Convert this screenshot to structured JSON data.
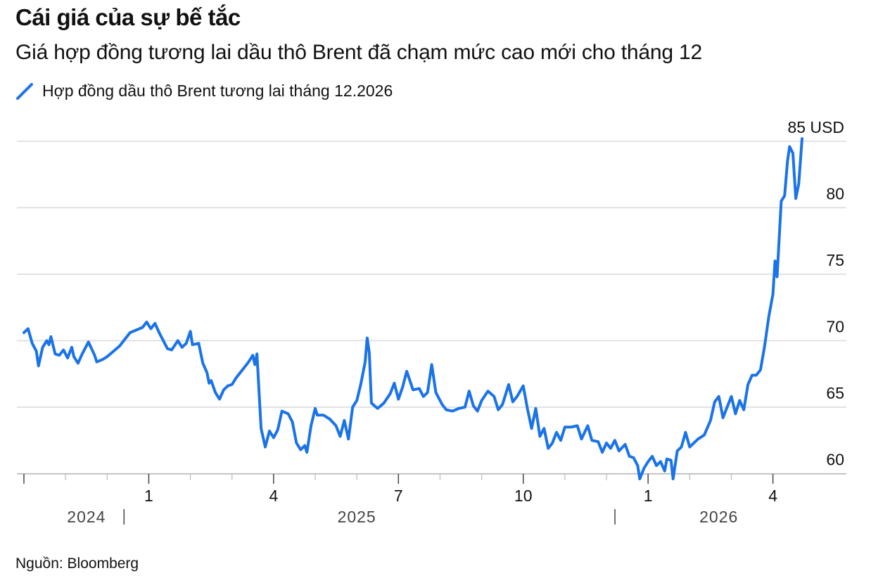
{
  "title": "Cái giá của sự bế tắc",
  "subtitle": "Giá hợp đồng tương lai dầu thô Brent đã chạm mức cao mới cho tháng 12",
  "source": "Nguồn: Bloomberg",
  "colors": {
    "line": "#1a73e8",
    "grid": "#d9d9d9",
    "axis": "#444444"
  },
  "chart_data": {
    "type": "line",
    "title": "Cái giá của sự bế tắc",
    "subtitle": "Giá hợp đồng tương lai dầu thô Brent đã chạm mức cao mới cho tháng 12",
    "legend": [
      "Hợp đồng dầu thô Brent tương lai tháng 12.2026"
    ],
    "legend_position": "top-left",
    "xlabel": "",
    "ylabel": "",
    "x_range": [
      0,
      18.7
    ],
    "ylim": [
      59.5,
      86.0
    ],
    "y_ticks": [
      {
        "value": 60,
        "label": "60"
      },
      {
        "value": 65,
        "label": "65"
      },
      {
        "value": 70,
        "label": "70"
      },
      {
        "value": 75,
        "label": "75"
      },
      {
        "value": 80,
        "label": "80"
      },
      {
        "value": 85,
        "label": "85 USD"
      }
    ],
    "x_ticks": [
      {
        "pos": 0,
        "label": ""
      },
      {
        "pos": 3,
        "label": "1"
      },
      {
        "pos": 6,
        "label": "4"
      },
      {
        "pos": 9,
        "label": "7"
      },
      {
        "pos": 12,
        "label": "10"
      },
      {
        "pos": 15,
        "label": "1"
      },
      {
        "pos": 18,
        "label": "4"
      }
    ],
    "minor_ticks": [
      1,
      2,
      4,
      5,
      7,
      8,
      10,
      11,
      13,
      14,
      16,
      17
    ],
    "years": [
      {
        "label": "2024",
        "center": 1.3
      },
      {
        "label": "2025",
        "center": 8.0
      },
      {
        "label": "2026",
        "center": 16.7
      }
    ],
    "year_separators": [
      2.0,
      14.0
    ],
    "grid": true,
    "series": [
      {
        "name": "Hợp đồng dầu thô Brent tương lai tháng 12.2026",
        "points": [
          [
            0.0,
            70.6
          ],
          [
            0.1,
            70.9
          ],
          [
            0.2,
            69.8
          ],
          [
            0.3,
            69.2
          ],
          [
            0.35,
            68.1
          ],
          [
            0.45,
            69.5
          ],
          [
            0.55,
            70.0
          ],
          [
            0.6,
            69.7
          ],
          [
            0.65,
            70.3
          ],
          [
            0.75,
            69.0
          ],
          [
            0.85,
            68.9
          ],
          [
            0.95,
            69.3
          ],
          [
            1.05,
            68.7
          ],
          [
            1.15,
            69.5
          ],
          [
            1.2,
            68.8
          ],
          [
            1.3,
            68.3
          ],
          [
            1.4,
            69.0
          ],
          [
            1.55,
            69.9
          ],
          [
            1.7,
            68.9
          ],
          [
            1.75,
            68.4
          ],
          [
            1.9,
            68.6
          ],
          [
            2.0,
            68.8
          ],
          [
            2.15,
            69.2
          ],
          [
            2.3,
            69.6
          ],
          [
            2.4,
            70.0
          ],
          [
            2.55,
            70.6
          ],
          [
            2.7,
            70.8
          ],
          [
            2.85,
            71.0
          ],
          [
            2.95,
            71.4
          ],
          [
            3.05,
            70.9
          ],
          [
            3.15,
            71.3
          ],
          [
            3.25,
            70.6
          ],
          [
            3.45,
            69.4
          ],
          [
            3.55,
            69.3
          ],
          [
            3.7,
            70.0
          ],
          [
            3.8,
            69.5
          ],
          [
            3.9,
            69.8
          ],
          [
            4.0,
            70.7
          ],
          [
            4.05,
            69.7
          ],
          [
            4.2,
            69.8
          ],
          [
            4.3,
            68.3
          ],
          [
            4.4,
            67.6
          ],
          [
            4.45,
            66.8
          ],
          [
            4.5,
            67.0
          ],
          [
            4.6,
            66.1
          ],
          [
            4.7,
            65.6
          ],
          [
            4.8,
            66.3
          ],
          [
            4.9,
            66.6
          ],
          [
            5.0,
            66.7
          ],
          [
            5.1,
            67.2
          ],
          [
            5.25,
            67.8
          ],
          [
            5.4,
            68.4
          ],
          [
            5.5,
            68.9
          ],
          [
            5.55,
            68.2
          ],
          [
            5.6,
            69.0
          ],
          [
            5.7,
            63.4
          ],
          [
            5.8,
            62.0
          ],
          [
            5.9,
            63.2
          ],
          [
            6.0,
            62.7
          ],
          [
            6.1,
            63.3
          ],
          [
            6.2,
            64.7
          ],
          [
            6.35,
            64.5
          ],
          [
            6.45,
            63.9
          ],
          [
            6.55,
            62.3
          ],
          [
            6.65,
            61.8
          ],
          [
            6.75,
            62.1
          ],
          [
            6.8,
            61.6
          ],
          [
            6.9,
            63.6
          ],
          [
            7.0,
            64.9
          ],
          [
            7.05,
            64.4
          ],
          [
            7.2,
            64.4
          ],
          [
            7.35,
            64.1
          ],
          [
            7.5,
            63.6
          ],
          [
            7.6,
            62.8
          ],
          [
            7.7,
            64.0
          ],
          [
            7.8,
            62.6
          ],
          [
            7.9,
            65.0
          ],
          [
            8.0,
            65.5
          ],
          [
            8.1,
            66.8
          ],
          [
            8.2,
            68.4
          ],
          [
            8.25,
            70.2
          ],
          [
            8.3,
            69.1
          ],
          [
            8.35,
            65.3
          ],
          [
            8.5,
            64.9
          ],
          [
            8.65,
            65.3
          ],
          [
            8.8,
            66.0
          ],
          [
            8.9,
            66.8
          ],
          [
            9.0,
            65.6
          ],
          [
            9.1,
            66.5
          ],
          [
            9.2,
            67.7
          ],
          [
            9.35,
            66.3
          ],
          [
            9.5,
            66.4
          ],
          [
            9.6,
            65.8
          ],
          [
            9.7,
            66.1
          ],
          [
            9.8,
            68.2
          ],
          [
            9.9,
            66.1
          ],
          [
            10.05,
            65.2
          ],
          [
            10.15,
            64.8
          ],
          [
            10.3,
            64.7
          ],
          [
            10.45,
            64.9
          ],
          [
            10.6,
            65.0
          ],
          [
            10.7,
            66.2
          ],
          [
            10.8,
            65.1
          ],
          [
            10.9,
            64.7
          ],
          [
            11.0,
            65.5
          ],
          [
            11.15,
            66.2
          ],
          [
            11.3,
            65.8
          ],
          [
            11.4,
            64.8
          ],
          [
            11.5,
            65.2
          ],
          [
            11.65,
            66.7
          ],
          [
            11.75,
            65.4
          ],
          [
            11.85,
            65.8
          ],
          [
            12.0,
            66.6
          ],
          [
            12.1,
            64.9
          ],
          [
            12.2,
            63.4
          ],
          [
            12.3,
            64.9
          ],
          [
            12.4,
            62.8
          ],
          [
            12.5,
            63.4
          ],
          [
            12.6,
            61.9
          ],
          [
            12.7,
            62.3
          ],
          [
            12.8,
            63.1
          ],
          [
            12.9,
            62.5
          ],
          [
            13.0,
            63.5
          ],
          [
            13.15,
            63.5
          ],
          [
            13.3,
            63.6
          ],
          [
            13.4,
            62.6
          ],
          [
            13.55,
            63.6
          ],
          [
            13.65,
            62.5
          ],
          [
            13.8,
            62.4
          ],
          [
            13.9,
            61.6
          ],
          [
            14.0,
            62.3
          ],
          [
            14.1,
            61.9
          ],
          [
            14.2,
            62.5
          ],
          [
            14.3,
            61.7
          ],
          [
            14.45,
            62.2
          ],
          [
            14.55,
            61.3
          ],
          [
            14.65,
            61.2
          ],
          [
            14.75,
            60.6
          ],
          [
            14.8,
            59.6
          ],
          [
            14.9,
            60.4
          ],
          [
            15.0,
            60.9
          ],
          [
            15.1,
            61.3
          ],
          [
            15.2,
            60.6
          ],
          [
            15.3,
            60.9
          ],
          [
            15.4,
            60.2
          ],
          [
            15.45,
            61.1
          ],
          [
            15.55,
            61.0
          ],
          [
            15.6,
            59.6
          ],
          [
            15.7,
            61.7
          ],
          [
            15.8,
            62.0
          ],
          [
            15.9,
            63.1
          ],
          [
            16.0,
            62.0
          ],
          [
            16.1,
            62.3
          ],
          [
            16.2,
            62.6
          ],
          [
            16.35,
            62.9
          ],
          [
            16.5,
            64.0
          ],
          [
            16.6,
            65.4
          ],
          [
            16.7,
            65.8
          ],
          [
            16.8,
            64.2
          ],
          [
            16.9,
            65.0
          ],
          [
            17.0,
            65.8
          ],
          [
            17.1,
            64.5
          ],
          [
            17.2,
            65.5
          ],
          [
            17.3,
            64.8
          ],
          [
            17.4,
            66.7
          ],
          [
            17.5,
            67.4
          ],
          [
            17.6,
            67.4
          ],
          [
            17.7,
            67.8
          ],
          [
            17.8,
            69.6
          ],
          [
            17.9,
            71.8
          ],
          [
            18.0,
            73.5
          ],
          [
            18.05,
            76.0
          ],
          [
            18.1,
            74.8
          ],
          [
            18.2,
            80.5
          ],
          [
            18.28,
            80.9
          ],
          [
            18.35,
            83.5
          ],
          [
            18.4,
            84.6
          ],
          [
            18.48,
            84.1
          ],
          [
            18.55,
            80.7
          ],
          [
            18.62,
            81.8
          ],
          [
            18.7,
            85.2
          ]
        ]
      }
    ]
  }
}
